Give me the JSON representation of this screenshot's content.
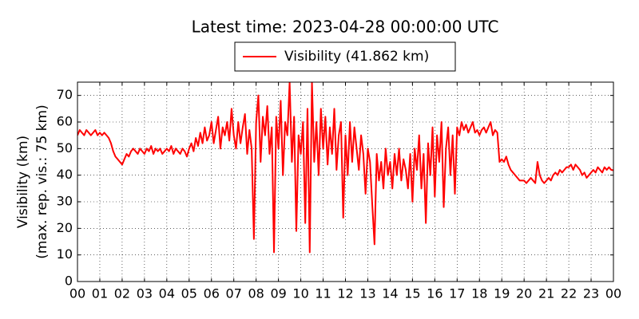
{
  "chart_data": {
    "type": "line",
    "title": "Latest time: 2023-04-28 00:00:00 UTC",
    "y_label": [
      "Visibility (km)",
      "(max. rep. vis.: 75 km)"
    ],
    "xlim": [
      0,
      24
    ],
    "xticks": [
      {
        "value": 0,
        "label": "00"
      },
      {
        "value": 1,
        "label": "01"
      },
      {
        "value": 2,
        "label": "02"
      },
      {
        "value": 3,
        "label": "03"
      },
      {
        "value": 4,
        "label": "04"
      },
      {
        "value": 5,
        "label": "05"
      },
      {
        "value": 6,
        "label": "06"
      },
      {
        "value": 7,
        "label": "07"
      },
      {
        "value": 8,
        "label": "08"
      },
      {
        "value": 9,
        "label": "09"
      },
      {
        "value": 10,
        "label": "10"
      },
      {
        "value": 11,
        "label": "11"
      },
      {
        "value": 12,
        "label": "12"
      },
      {
        "value": 13,
        "label": "13"
      },
      {
        "value": 14,
        "label": "14"
      },
      {
        "value": 15,
        "label": "15"
      },
      {
        "value": 16,
        "label": "16"
      },
      {
        "value": 17,
        "label": "17"
      },
      {
        "value": 18,
        "label": "18"
      },
      {
        "value": 19,
        "label": "19"
      },
      {
        "value": 20,
        "label": "20"
      },
      {
        "value": 21,
        "label": "21"
      },
      {
        "value": 22,
        "label": "22"
      },
      {
        "value": 23,
        "label": "23"
      },
      {
        "value": 24,
        "label": "00"
      }
    ],
    "ylim": [
      0,
      75
    ],
    "yticks": [
      0,
      10,
      20,
      30,
      40,
      50,
      60,
      70
    ],
    "grid": true,
    "legend": "upper center",
    "x": [
      0,
      0.1,
      0.2,
      0.3,
      0.4,
      0.5,
      0.6,
      0.7,
      0.8,
      0.9,
      1,
      1.1,
      1.2,
      1.3,
      1.4,
      1.5,
      1.6,
      1.7,
      1.8,
      1.9,
      2,
      2.1,
      2.2,
      2.3,
      2.4,
      2.5,
      2.6,
      2.7,
      2.8,
      2.9,
      3,
      3.1,
      3.2,
      3.3,
      3.4,
      3.5,
      3.6,
      3.7,
      3.8,
      3.9,
      4,
      4.1,
      4.2,
      4.3,
      4.4,
      4.5,
      4.6,
      4.7,
      4.8,
      4.9,
      5,
      5.1,
      5.2,
      5.3,
      5.4,
      5.5,
      5.6,
      5.7,
      5.8,
      5.9,
      6,
      6.1,
      6.2,
      6.3,
      6.4,
      6.5,
      6.6,
      6.7,
      6.8,
      6.9,
      7,
      7.1,
      7.2,
      7.3,
      7.4,
      7.5,
      7.6,
      7.7,
      7.8,
      7.9,
      8,
      8.1,
      8.2,
      8.3,
      8.4,
      8.5,
      8.6,
      8.7,
      8.8,
      8.9,
      9,
      9.1,
      9.2,
      9.3,
      9.4,
      9.5,
      9.6,
      9.7,
      9.8,
      9.9,
      10,
      10.1,
      10.2,
      10.3,
      10.4,
      10.5,
      10.6,
      10.7,
      10.8,
      10.9,
      11,
      11.1,
      11.2,
      11.3,
      11.4,
      11.5,
      11.6,
      11.7,
      11.8,
      11.9,
      12,
      12.1,
      12.2,
      12.3,
      12.4,
      12.5,
      12.6,
      12.7,
      12.8,
      12.9,
      13,
      13.1,
      13.2,
      13.3,
      13.4,
      13.5,
      13.6,
      13.7,
      13.8,
      13.9,
      14,
      14.1,
      14.2,
      14.3,
      14.4,
      14.5,
      14.6,
      14.7,
      14.8,
      14.9,
      15,
      15.1,
      15.2,
      15.3,
      15.4,
      15.5,
      15.6,
      15.7,
      15.8,
      15.9,
      16,
      16.1,
      16.2,
      16.3,
      16.4,
      16.5,
      16.6,
      16.7,
      16.8,
      16.9,
      17,
      17.1,
      17.2,
      17.3,
      17.4,
      17.5,
      17.6,
      17.7,
      17.8,
      17.9,
      18,
      18.1,
      18.2,
      18.3,
      18.4,
      18.5,
      18.6,
      18.7,
      18.8,
      18.9,
      19,
      19.1,
      19.2,
      19.3,
      19.4,
      19.5,
      19.6,
      19.7,
      19.8,
      19.9,
      20,
      20.1,
      20.2,
      20.3,
      20.4,
      20.5,
      20.6,
      20.7,
      20.8,
      20.9,
      21,
      21.1,
      21.2,
      21.3,
      21.4,
      21.5,
      21.6,
      21.7,
      21.8,
      21.9,
      22,
      22.1,
      22.2,
      22.3,
      22.4,
      22.5,
      22.6,
      22.7,
      22.8,
      22.9,
      23,
      23.1,
      23.2,
      23.3,
      23.4,
      23.5,
      23.6,
      23.7,
      23.8,
      23.9,
      24
    ],
    "series": [
      {
        "name": "Visibility (41.862 km)",
        "color": "#ff0000",
        "values": [
          55,
          57,
          56,
          55,
          57,
          56,
          55,
          56,
          57,
          55,
          56,
          55,
          56,
          55,
          54,
          52,
          49,
          47,
          46,
          45,
          44,
          46,
          48,
          47,
          49,
          50,
          49,
          48,
          50,
          49,
          48,
          50,
          49,
          51,
          48,
          50,
          49,
          50,
          48,
          49,
          50,
          49,
          51,
          48,
          50,
          49,
          48,
          50,
          49,
          47,
          50,
          52,
          49,
          54,
          51,
          56,
          52,
          58,
          53,
          55,
          60,
          52,
          57,
          62,
          50,
          58,
          55,
          60,
          53,
          65,
          55,
          50,
          60,
          52,
          58,
          63,
          48,
          57,
          50,
          16,
          60,
          70,
          45,
          62,
          55,
          66,
          48,
          58,
          11,
          62,
          50,
          68,
          40,
          60,
          55,
          75,
          45,
          62,
          19,
          55,
          48,
          60,
          22,
          65,
          11,
          75,
          45,
          60,
          40,
          65,
          50,
          62,
          44,
          58,
          48,
          65,
          42,
          55,
          60,
          24,
          55,
          40,
          60,
          45,
          58,
          50,
          42,
          55,
          48,
          33,
          50,
          45,
          29,
          14,
          48,
          38,
          45,
          35,
          50,
          40,
          45,
          35,
          48,
          40,
          50,
          38,
          46,
          42,
          35,
          48,
          30,
          50,
          42,
          55,
          35,
          48,
          22,
          52,
          40,
          58,
          32,
          55,
          45,
          60,
          28,
          50,
          58,
          40,
          55,
          33,
          58,
          55,
          60,
          57,
          59,
          56,
          58,
          60,
          56,
          57,
          55,
          57,
          58,
          56,
          58,
          60,
          55,
          57,
          56,
          45,
          46,
          45,
          47,
          44,
          42,
          41,
          40,
          39,
          38,
          38,
          38,
          37,
          38,
          39,
          38,
          37,
          45,
          40,
          38,
          37,
          38,
          39,
          38,
          40,
          41,
          40,
          42,
          41,
          42,
          43,
          43,
          44,
          42,
          44,
          43,
          42,
          40,
          41,
          39,
          40,
          41,
          42,
          41,
          43,
          42,
          41,
          43,
          42,
          43,
          42,
          41.862
        ]
      }
    ]
  }
}
